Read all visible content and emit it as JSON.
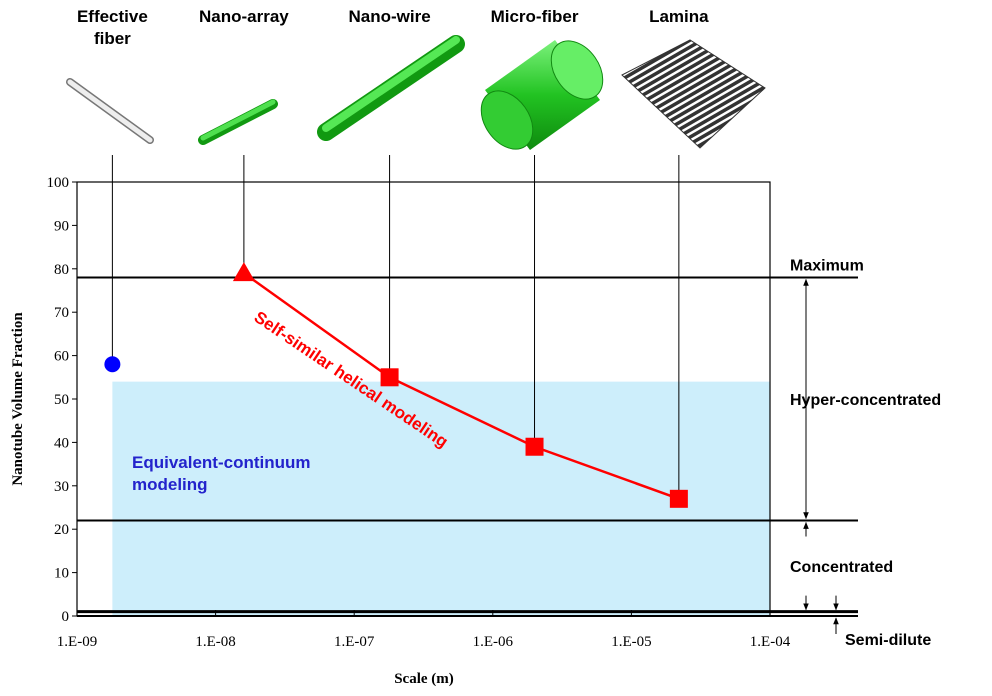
{
  "chart_data": {
    "type": "scatter",
    "x_label": "Scale (m)",
    "y_label": "Nanotube Volume Fraction",
    "xscale": "log",
    "xlim": [
      1e-09,
      0.0001
    ],
    "xticks": [
      {
        "value": 1e-09,
        "label": "1.E-09"
      },
      {
        "value": 1e-08,
        "label": "1.E-08"
      },
      {
        "value": 1e-07,
        "label": "1.E-07"
      },
      {
        "value": 1e-06,
        "label": "1.E-06"
      },
      {
        "value": 1e-05,
        "label": "1.E-05"
      },
      {
        "value": 0.0001,
        "label": "1.E-04"
      }
    ],
    "ylim": [
      0,
      100
    ],
    "yticks": [
      0,
      10,
      20,
      30,
      40,
      50,
      60,
      70,
      80,
      90,
      100
    ],
    "scale_labels": [
      "Effective fiber",
      "Nano-array",
      "Nano-wire",
      "Micro-fiber",
      "Lamina"
    ],
    "series": [
      {
        "color": "#0000ff",
        "marker": "circle",
        "x": [
          1.8e-09
        ],
        "values": [
          58
        ]
      },
      {
        "color": "#ff0000",
        "markers": [
          "triangle",
          "square",
          "square",
          "square"
        ],
        "x": [
          1.6e-08,
          1.8e-07,
          2e-06,
          2.2e-05
        ],
        "values": [
          79,
          55,
          39,
          27
        ]
      }
    ],
    "band": {
      "x": [
        1.8e-09,
        0.0001
      ],
      "y": [
        0,
        54
      ],
      "color": "#cdeefb"
    },
    "levels": [
      78,
      22,
      1
    ],
    "regions": [
      "Maximum",
      "Hyper-concentrated",
      "Concentrated",
      "Semi-dilute"
    ],
    "annotations": [
      "Self-similar helical modeling",
      "Equivalent-continuum modeling"
    ]
  }
}
